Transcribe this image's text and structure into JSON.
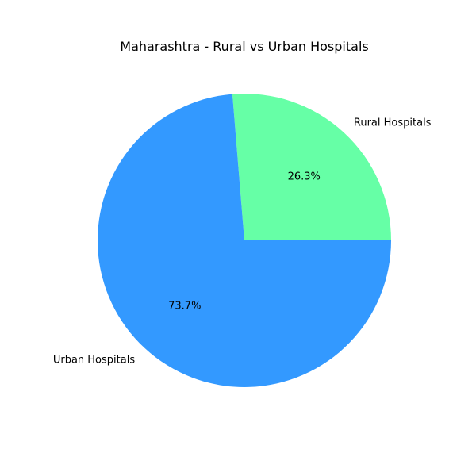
{
  "chart_data": {
    "type": "pie",
    "title": "Maharashtra - Rural vs Urban Hospitals",
    "slices": [
      {
        "label": "Rural Hospitals",
        "value": 26.3,
        "pct_label": "26.3%",
        "color": "#66ffa6"
      },
      {
        "label": "Urban Hospitals",
        "value": 73.7,
        "pct_label": "73.7%",
        "color": "#3399ff"
      }
    ],
    "start_angle_deg": 0,
    "direction": "counterclockwise",
    "legend": "none"
  }
}
